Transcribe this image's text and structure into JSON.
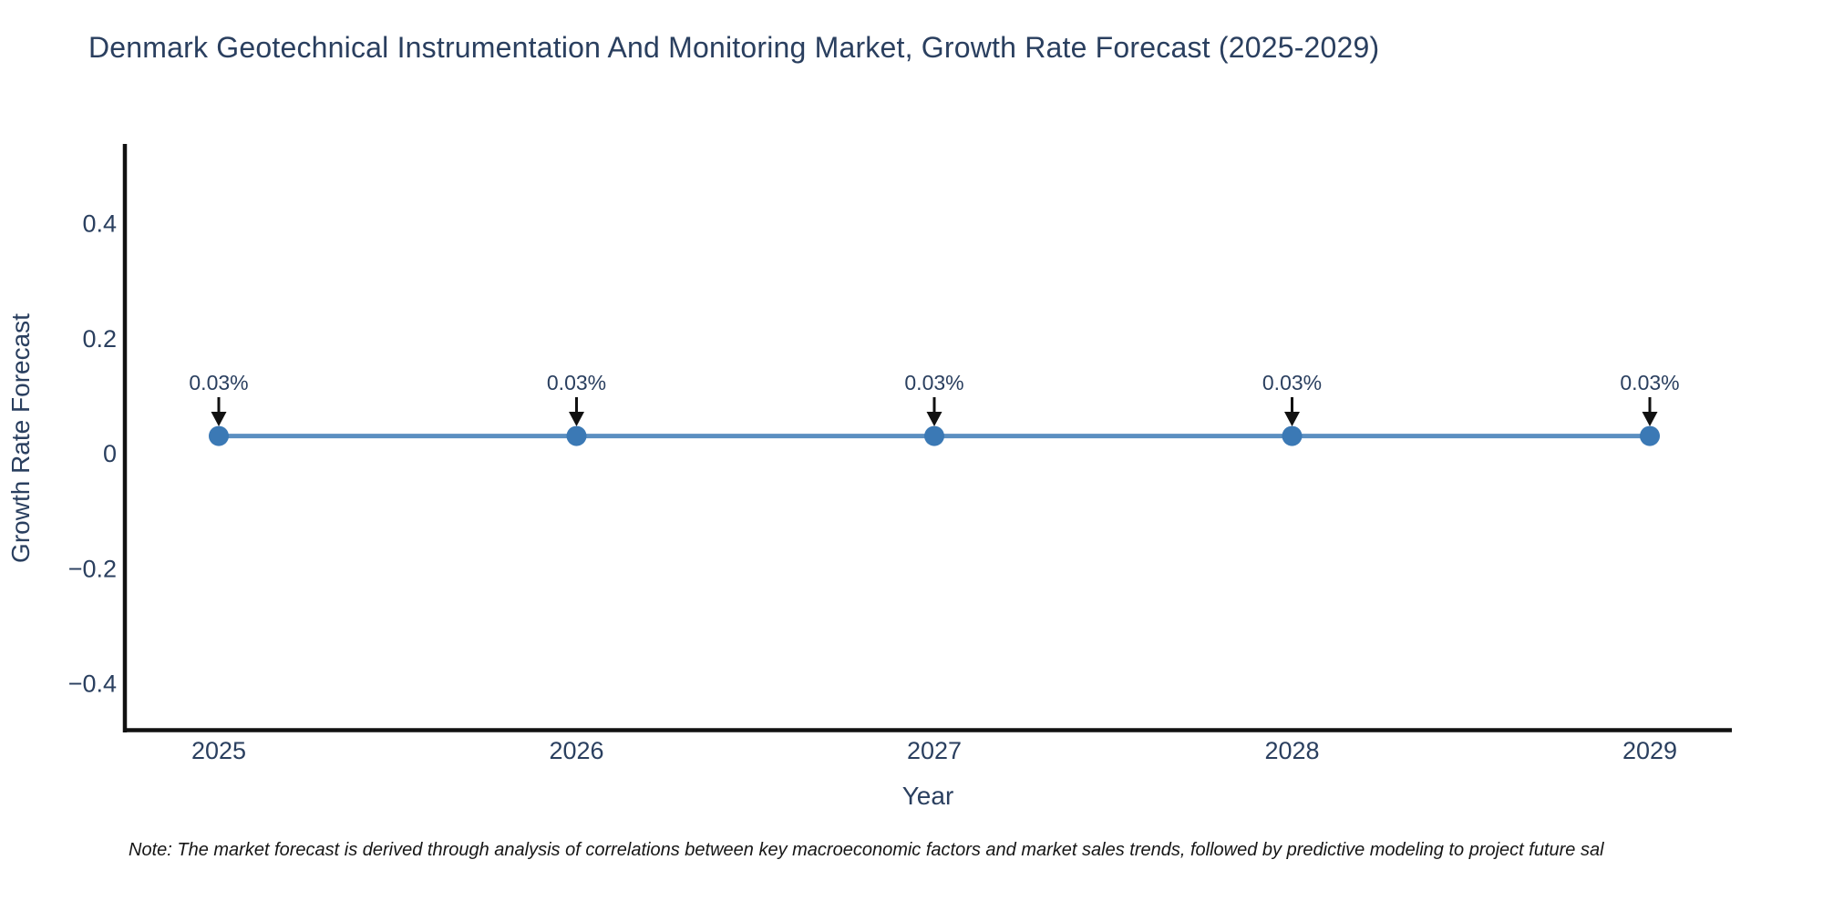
{
  "chart_data": {
    "type": "line",
    "title": "Denmark Geotechnical Instrumentation And Monitoring Market, Growth Rate Forecast (2025-2029)",
    "xlabel": "Year",
    "ylabel": "Growth Rate Forecast",
    "x": [
      2025,
      2026,
      2027,
      2028,
      2029
    ],
    "x_labels": [
      "2025",
      "2026",
      "2027",
      "2028",
      "2029"
    ],
    "series": [
      {
        "name": "Growth Rate Forecast",
        "values": [
          0.03,
          0.03,
          0.03,
          0.03,
          0.03
        ]
      }
    ],
    "point_labels": [
      "0.03%",
      "0.03%",
      "0.03%",
      "0.03%",
      "0.03%"
    ],
    "yticks": [
      0.4,
      0.2,
      0,
      -0.2,
      -0.4
    ],
    "ytick_labels": [
      "0.4",
      "0.2",
      "0",
      "−0.2",
      "−0.4"
    ],
    "ylim": [
      -0.49,
      0.54
    ],
    "xlim_years": [
      2025,
      2029
    ],
    "grid": false,
    "legend_position": "none",
    "annotation_arrows": "down-to-point",
    "colors": {
      "line": "#5b8fc1",
      "marker": "#3b79b5",
      "axis": "#111111",
      "text": "#2a3f5f",
      "annotation_text": "#2a3f5f",
      "arrow": "#111111",
      "background": "#ffffff"
    }
  },
  "footnote": {
    "text": "Note: The market forecast is derived through analysis of correlations between key macroeconomic factors and market sales trends, followed by predictive modeling to project future sal"
  }
}
